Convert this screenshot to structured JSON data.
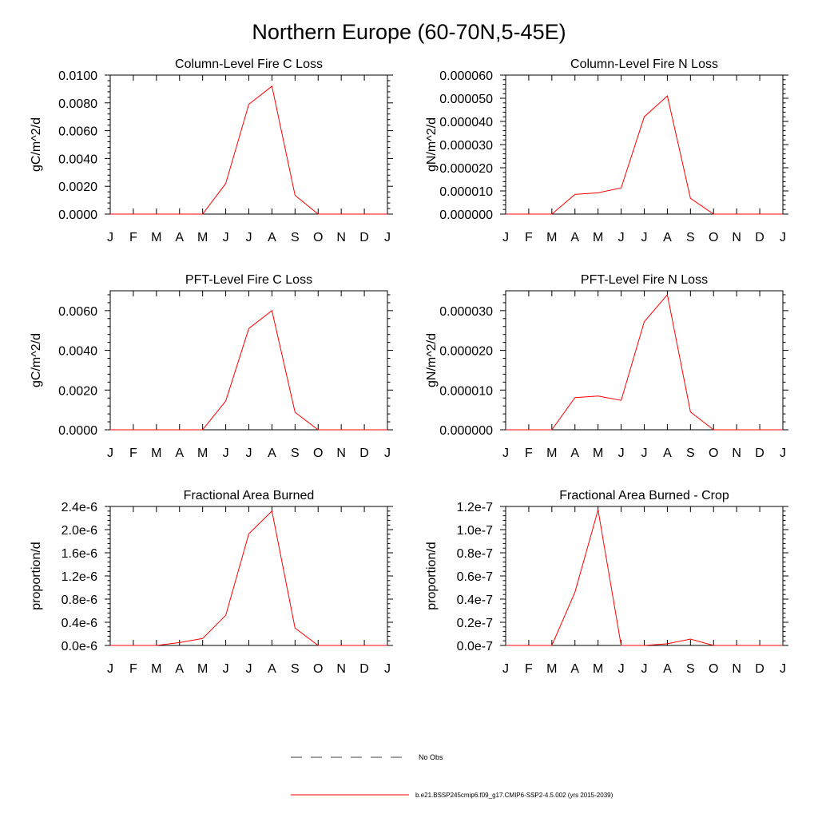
{
  "figure": {
    "title": "Northern Europe (60-70N,5-45E)"
  },
  "legend": {
    "obs_label": "No Obs",
    "model_label": "b.e21.BSSP245cmip6.f09_g17.CMIP6-SSP2-4.5.002 (yrs 2015-2039)",
    "model_color": "#ff0000",
    "obs_color": "#000000"
  },
  "chart_data": [
    {
      "type": "line",
      "title": "Column-Level Fire C Loss",
      "ylabel": "gC/m^2/d",
      "xlabel": "",
      "categories": [
        "J",
        "F",
        "M",
        "A",
        "M",
        "J",
        "J",
        "A",
        "S",
        "O",
        "N",
        "D",
        "J"
      ],
      "ylim": [
        0,
        0.01
      ],
      "yticks": [
        0,
        0.002,
        0.004,
        0.006,
        0.008,
        0.01
      ],
      "ytick_labels": [
        "0.0000",
        "0.0020",
        "0.0040",
        "0.0060",
        "0.0080",
        "0.0100"
      ],
      "series": [
        {
          "name": "b.e21.BSSP245cmip6.f09_g17.CMIP6-SSP2-4.5.002",
          "values": [
            0,
            0,
            0,
            0,
            0,
            0.0022,
            0.0079,
            0.0092,
            0.00135,
            0,
            0,
            0,
            0
          ]
        }
      ]
    },
    {
      "type": "line",
      "title": "Column-Level Fire N Loss",
      "ylabel": "gN/m^2/d",
      "xlabel": "",
      "categories": [
        "J",
        "F",
        "M",
        "A",
        "M",
        "J",
        "J",
        "A",
        "S",
        "O",
        "N",
        "D",
        "J"
      ],
      "ylim": [
        0,
        6e-05
      ],
      "yticks": [
        0,
        1e-05,
        2e-05,
        3e-05,
        4e-05,
        5e-05,
        6e-05
      ],
      "ytick_labels": [
        "0.000000",
        "0.000010",
        "0.000020",
        "0.000030",
        "0.000040",
        "0.000050",
        "0.000060"
      ],
      "series": [
        {
          "name": "b.e21.BSSP245cmip6.f09_g17.CMIP6-SSP2-4.5.002",
          "values": [
            0,
            0,
            0,
            8.5e-06,
            9.2e-06,
            1.13e-05,
            4.2e-05,
            5.1e-05,
            6.8e-06,
            0,
            0,
            0,
            0
          ]
        }
      ]
    },
    {
      "type": "line",
      "title": "PFT-Level Fire C Loss",
      "ylabel": "gC/m^2/d",
      "xlabel": "",
      "categories": [
        "J",
        "F",
        "M",
        "A",
        "M",
        "J",
        "J",
        "A",
        "S",
        "O",
        "N",
        "D",
        "J"
      ],
      "ylim": [
        0,
        0.007
      ],
      "yticks": [
        0,
        0.002,
        0.004,
        0.006
      ],
      "ytick_labels": [
        "0.0000",
        "0.0020",
        "0.0040",
        "0.0060"
      ],
      "series": [
        {
          "name": "b.e21.BSSP245cmip6.f09_g17.CMIP6-SSP2-4.5.002",
          "values": [
            0,
            0,
            0,
            0,
            0,
            0.00145,
            0.0051,
            0.006,
            0.00088,
            0,
            0,
            0,
            0
          ]
        }
      ]
    },
    {
      "type": "line",
      "title": "PFT-Level Fire N Loss",
      "ylabel": "gN/m^2/d",
      "xlabel": "",
      "categories": [
        "J",
        "F",
        "M",
        "A",
        "M",
        "J",
        "J",
        "A",
        "S",
        "O",
        "N",
        "D",
        "J"
      ],
      "ylim": [
        0,
        3.5e-05
      ],
      "yticks": [
        0,
        1e-05,
        2e-05,
        3e-05
      ],
      "ytick_labels": [
        "0.000000",
        "0.000010",
        "0.000020",
        "0.000030"
      ],
      "series": [
        {
          "name": "b.e21.BSSP245cmip6.f09_g17.CMIP6-SSP2-4.5.002",
          "values": [
            0,
            0,
            0,
            8.1e-06,
            8.5e-06,
            7.4e-06,
            2.72e-05,
            3.4e-05,
            4.5e-06,
            0,
            0,
            0,
            0
          ]
        }
      ]
    },
    {
      "type": "line",
      "title": "Fractional Area Burned",
      "ylabel": "proportion/d",
      "xlabel": "",
      "categories": [
        "J",
        "F",
        "M",
        "A",
        "M",
        "J",
        "J",
        "A",
        "S",
        "O",
        "N",
        "D",
        "J"
      ],
      "ylim": [
        0,
        2.4e-06
      ],
      "yticks": [
        0,
        4e-07,
        8e-07,
        1.2e-06,
        1.6e-06,
        2e-06,
        2.4e-06
      ],
      "ytick_labels": [
        "0.0e-6",
        "0.4e-6",
        "0.8e-6",
        "1.2e-6",
        "1.6e-6",
        "2.0e-6",
        "2.4e-6"
      ],
      "series": [
        {
          "name": "b.e21.BSSP245cmip6.f09_g17.CMIP6-SSP2-4.5.002",
          "values": [
            0,
            0,
            0,
            5e-08,
            1.2e-07,
            5.2e-07,
            1.93e-06,
            2.32e-06,
            3e-07,
            0,
            0,
            0,
            0
          ]
        }
      ]
    },
    {
      "type": "line",
      "title": "Fractional Area Burned - Crop",
      "ylabel": "proportion/d",
      "xlabel": "",
      "categories": [
        "J",
        "F",
        "M",
        "A",
        "M",
        "J",
        "J",
        "A",
        "S",
        "O",
        "N",
        "D",
        "J"
      ],
      "ylim": [
        0,
        1.2e-07
      ],
      "yticks": [
        0,
        2e-08,
        4e-08,
        6e-08,
        8e-08,
        1e-07,
        1.2e-07
      ],
      "ytick_labels": [
        "0.0e-7",
        "0.2e-7",
        "0.4e-7",
        "0.6e-7",
        "0.8e-7",
        "1.0e-7",
        "1.2e-7"
      ],
      "series": [
        {
          "name": "b.e21.BSSP245cmip6.f09_g17.CMIP6-SSP2-4.5.002",
          "values": [
            0,
            0,
            0,
            4.6e-08,
            1.17e-07,
            0,
            0,
            1.5e-09,
            5.5e-09,
            0,
            0,
            0,
            0
          ]
        }
      ]
    }
  ]
}
